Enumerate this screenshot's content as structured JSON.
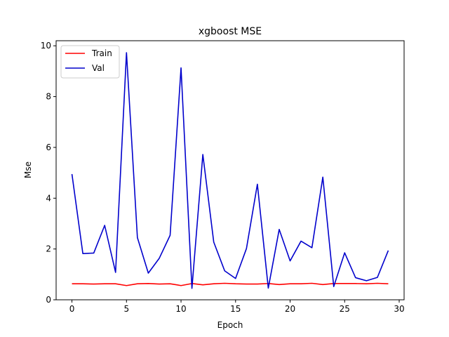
{
  "chart_data": {
    "type": "line",
    "title": "xgboost MSE",
    "xlabel": "Epoch",
    "ylabel": "Mse",
    "xlim": [
      -1.45,
      30.45
    ],
    "ylim": [
      0,
      10.2
    ],
    "xticks": [
      0,
      5,
      10,
      15,
      20,
      25,
      30
    ],
    "yticks": [
      0,
      2,
      4,
      6,
      8,
      10
    ],
    "grid": false,
    "legend_position": "top-left",
    "x": [
      0,
      1,
      2,
      3,
      4,
      5,
      6,
      7,
      8,
      9,
      10,
      11,
      12,
      13,
      14,
      15,
      16,
      17,
      18,
      19,
      20,
      21,
      22,
      23,
      24,
      25,
      26,
      27,
      28,
      29
    ],
    "series": [
      {
        "name": "Train",
        "color": "#ff0000",
        "values": [
          0.63,
          0.63,
          0.62,
          0.63,
          0.63,
          0.56,
          0.63,
          0.64,
          0.62,
          0.63,
          0.56,
          0.64,
          0.59,
          0.63,
          0.65,
          0.63,
          0.62,
          0.62,
          0.64,
          0.6,
          0.63,
          0.63,
          0.65,
          0.6,
          0.64,
          0.64,
          0.64,
          0.63,
          0.65,
          0.63
        ]
      },
      {
        "name": "Val",
        "color": "#0000cc",
        "values": [
          4.95,
          1.82,
          1.84,
          2.93,
          1.08,
          9.73,
          2.45,
          1.05,
          1.63,
          2.54,
          9.13,
          0.45,
          5.72,
          2.27,
          1.14,
          0.84,
          2.02,
          4.55,
          0.46,
          2.77,
          1.53,
          2.31,
          2.05,
          4.83,
          0.52,
          1.85,
          0.87,
          0.75,
          0.88,
          1.94
        ]
      }
    ]
  }
}
